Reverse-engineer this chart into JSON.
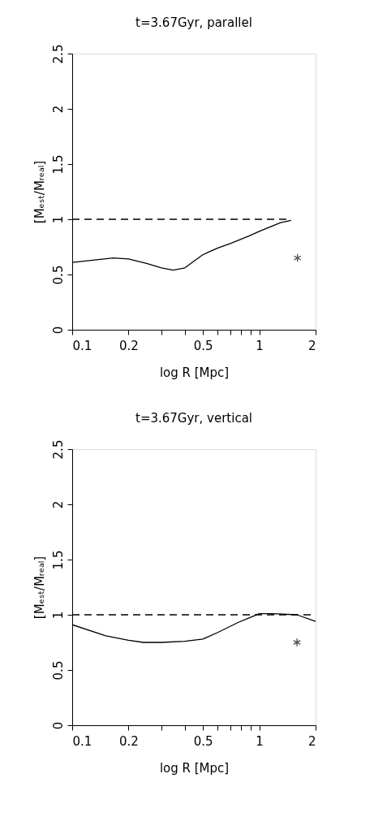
{
  "chart_data": [
    {
      "type": "line",
      "title": "t=3.67Gyr, parallel",
      "xlabel": "log R [Mpc]",
      "ylabel": "[Mₑₛₜ/Mᵣₑₐₗ]",
      "log": "x",
      "grid": false,
      "marker": "none",
      "line_style": "solid",
      "xlim": [
        0.1,
        2
      ],
      "ylim": [
        0,
        2.5
      ],
      "xticks": [
        0.1,
        0.2,
        {
          "value": 0.3,
          "label": null
        },
        {
          "value": 0.4,
          "label": null
        },
        0.5,
        {
          "value": 0.6,
          "label": null
        },
        {
          "value": 0.7,
          "label": null
        },
        {
          "value": 0.8,
          "label": null
        },
        {
          "value": 0.9,
          "label": null
        },
        1,
        2
      ],
      "yticks": [
        0,
        0.5,
        1,
        1.5,
        2,
        2.5
      ],
      "series": [
        {
          "color": "#000000",
          "x": [
            0.1,
            0.166,
            0.2,
            0.25,
            0.3,
            0.347,
            0.4,
            0.5,
            0.6,
            0.7,
            0.885,
            1,
            1.3,
            1.48
          ],
          "values": [
            0.61,
            0.65,
            0.64,
            0.6,
            0.56,
            0.54,
            0.56,
            0.68,
            0.74,
            0.78,
            0.85,
            0.89,
            0.97,
            0.99
          ]
        },
        {
          "color": "#000000",
          "line_style": "dashed",
          "x": [
            0.1,
            1.48
          ],
          "values": [
            1,
            1
          ]
        },
        {
          "type": "scatter",
          "marker": "cross",
          "color": "#000000",
          "x": [
            1.6
          ],
          "values": [
            0.65
          ]
        }
      ]
    },
    {
      "type": "line",
      "title": "t=3.67Gyr, vertical",
      "xlabel": "log R [Mpc]",
      "ylabel": "[Mₑₛₜ/Mᵣₑₐₗ]",
      "log": "x",
      "grid": false,
      "marker": "none",
      "line_style": "solid",
      "xlim": [
        0.1,
        2
      ],
      "ylim": [
        0,
        2.5
      ],
      "xticks": [
        0.1,
        0.2,
        {
          "value": 0.3,
          "label": null
        },
        {
          "value": 0.4,
          "label": null
        },
        0.5,
        {
          "value": 0.6,
          "label": null
        },
        {
          "value": 0.7,
          "label": null
        },
        {
          "value": 0.8,
          "label": null
        },
        {
          "value": 0.9,
          "label": null
        },
        1,
        2
      ],
      "yticks": [
        0,
        0.5,
        1,
        1.5,
        2,
        2.5
      ],
      "series": [
        {
          "color": "#000000",
          "x": [
            0.1,
            0.151,
            0.2,
            0.24,
            0.3,
            0.4,
            0.5,
            0.6,
            0.77,
            1,
            1.18,
            1.59,
            2
          ],
          "values": [
            0.91,
            0.81,
            0.77,
            0.75,
            0.75,
            0.76,
            0.78,
            0.84,
            0.93,
            1.01,
            1.01,
            1.0,
            0.94
          ]
        },
        {
          "color": "#000000",
          "line_style": "dashed",
          "x": [
            0.1,
            2
          ],
          "values": [
            1,
            1
          ]
        },
        {
          "type": "scatter",
          "marker": "cross",
          "color": "#000000",
          "x": [
            1.59
          ],
          "values": [
            0.75
          ]
        }
      ]
    }
  ]
}
